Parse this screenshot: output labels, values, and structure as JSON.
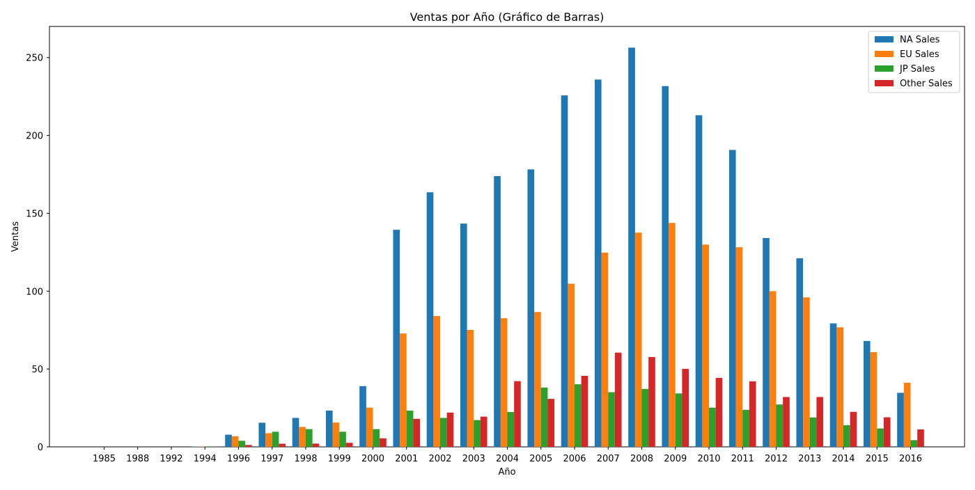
{
  "chart_data": {
    "type": "bar",
    "title": "Ventas por Año (Gráfico de Barras)",
    "xlabel": "Año",
    "ylabel": "Ventas",
    "categories": [
      "1985",
      "1988",
      "1992",
      "1994",
      "1996",
      "1997",
      "1998",
      "1999",
      "2000",
      "2001",
      "2002",
      "2003",
      "2004",
      "2005",
      "2006",
      "2007",
      "2008",
      "2009",
      "2010",
      "2011",
      "2012",
      "2013",
      "2014",
      "2015",
      "2016"
    ],
    "ylim": [
      0,
      270
    ],
    "yticks": [
      0,
      50,
      100,
      150,
      200,
      250
    ],
    "grid": false,
    "legend_position": "top-right",
    "series": [
      {
        "name": "NA Sales",
        "color": "#1f77b4",
        "values": [
          0,
          0,
          0,
          0.2,
          7.8,
          15.5,
          18.6,
          23.3,
          39.0,
          139.4,
          163.5,
          143.4,
          173.9,
          178.2,
          225.7,
          235.9,
          256.4,
          231.7,
          213.0,
          190.7,
          134.1,
          121.1,
          79.3,
          68.0,
          34.7
        ]
      },
      {
        "name": "EU Sales",
        "color": "#ff7f0e",
        "values": [
          0,
          0,
          0,
          0.2,
          6.8,
          8.8,
          12.8,
          15.6,
          25.2,
          72.8,
          84.0,
          75.1,
          82.6,
          86.6,
          104.8,
          124.7,
          137.6,
          143.8,
          129.9,
          128.2,
          100.0,
          96.0,
          76.8,
          60.8,
          41.2
        ]
      },
      {
        "name": "JP Sales",
        "color": "#2ca02c",
        "values": [
          0,
          0,
          0,
          0.3,
          3.9,
          9.7,
          11.4,
          9.7,
          11.4,
          23.3,
          18.6,
          17.2,
          22.4,
          38.1,
          40.2,
          35.1,
          37.2,
          34.3,
          25.2,
          23.8,
          27.2,
          18.9,
          13.9,
          11.8,
          4.3
        ]
      },
      {
        "name": "Other Sales",
        "color": "#d62728",
        "values": [
          0,
          0,
          0,
          0.1,
          1.2,
          2.0,
          2.1,
          2.6,
          5.5,
          18.0,
          22.0,
          19.4,
          42.2,
          30.8,
          45.6,
          60.5,
          57.7,
          50.1,
          44.3,
          42.1,
          32.0,
          32.0,
          22.5,
          19.0,
          11.2
        ]
      }
    ]
  }
}
